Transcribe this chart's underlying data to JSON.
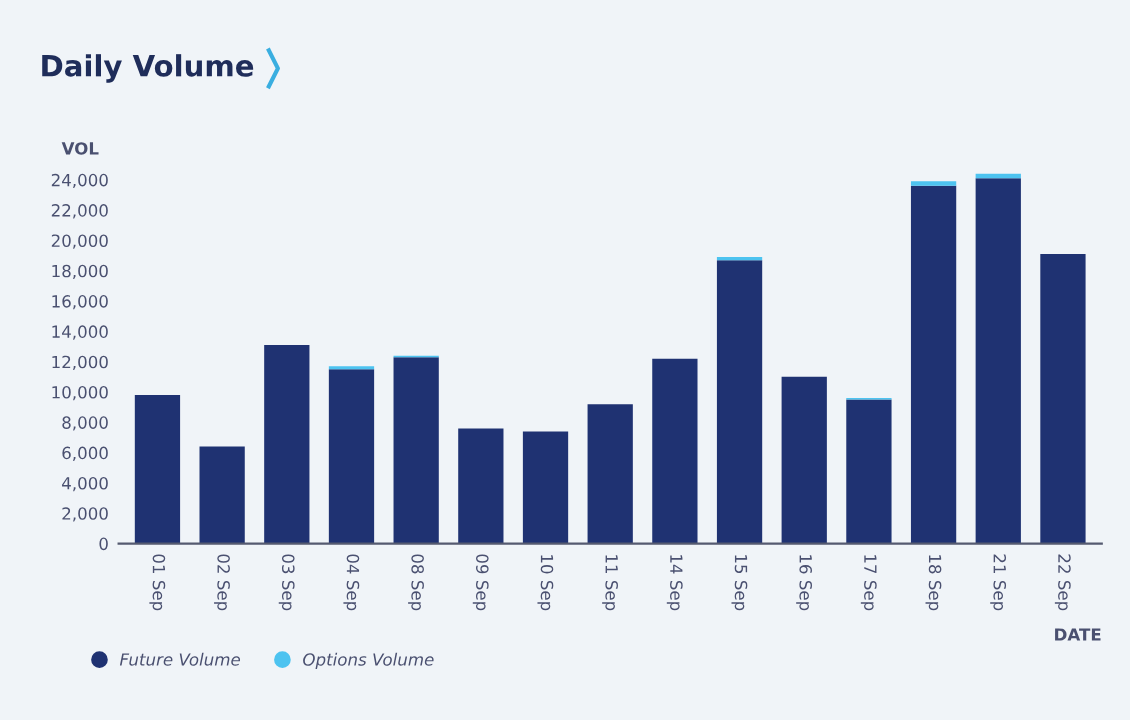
{
  "chart_data": {
    "type": "bar",
    "title": "Daily Volume",
    "xlabel": "DATE",
    "ylabel": "VOL",
    "categories": [
      "01 Sep",
      "02 Sep",
      "03 Sep",
      "04 Sep",
      "08 Sep",
      "09 Sep",
      "10 Sep",
      "11 Sep",
      "14 Sep",
      "15 Sep",
      "16 Sep",
      "17 Sep",
      "18 Sep",
      "21 Sep",
      "22 Sep"
    ],
    "stacked": true,
    "series": [
      {
        "name": "Future Volume",
        "color": "#1f3272",
        "values": [
          9800,
          6400,
          13100,
          11500,
          12300,
          7600,
          7400,
          9200,
          12200,
          18700,
          11000,
          9500,
          23600,
          24100,
          19100
        ]
      },
      {
        "name": "Options Volume",
        "color": "#4dc3f0",
        "values": [
          null,
          null,
          null,
          200,
          100,
          null,
          null,
          null,
          null,
          200,
          null,
          100,
          300,
          300,
          null
        ]
      }
    ],
    "ylim": [
      0,
      24700
    ],
    "yticks": [
      {
        "value": 0,
        "label": "0"
      },
      {
        "value": 2000,
        "label": "2,000"
      },
      {
        "value": 4000,
        "label": "4,000"
      },
      {
        "value": 6000,
        "label": "6,000"
      },
      {
        "value": 8000,
        "label": "8,000"
      },
      {
        "value": 10000,
        "label": "10,000"
      },
      {
        "value": 12000,
        "label": "12,000"
      },
      {
        "value": 14000,
        "label": "14,000"
      },
      {
        "value": 16000,
        "label": "16,000"
      },
      {
        "value": 18000,
        "label": "18,000"
      },
      {
        "value": 20000,
        "label": "20,000"
      },
      {
        "value": 22000,
        "label": "22,000"
      },
      {
        "value": 24000,
        "label": "24,000"
      }
    ],
    "grid": false,
    "legend": "bottom left"
  }
}
